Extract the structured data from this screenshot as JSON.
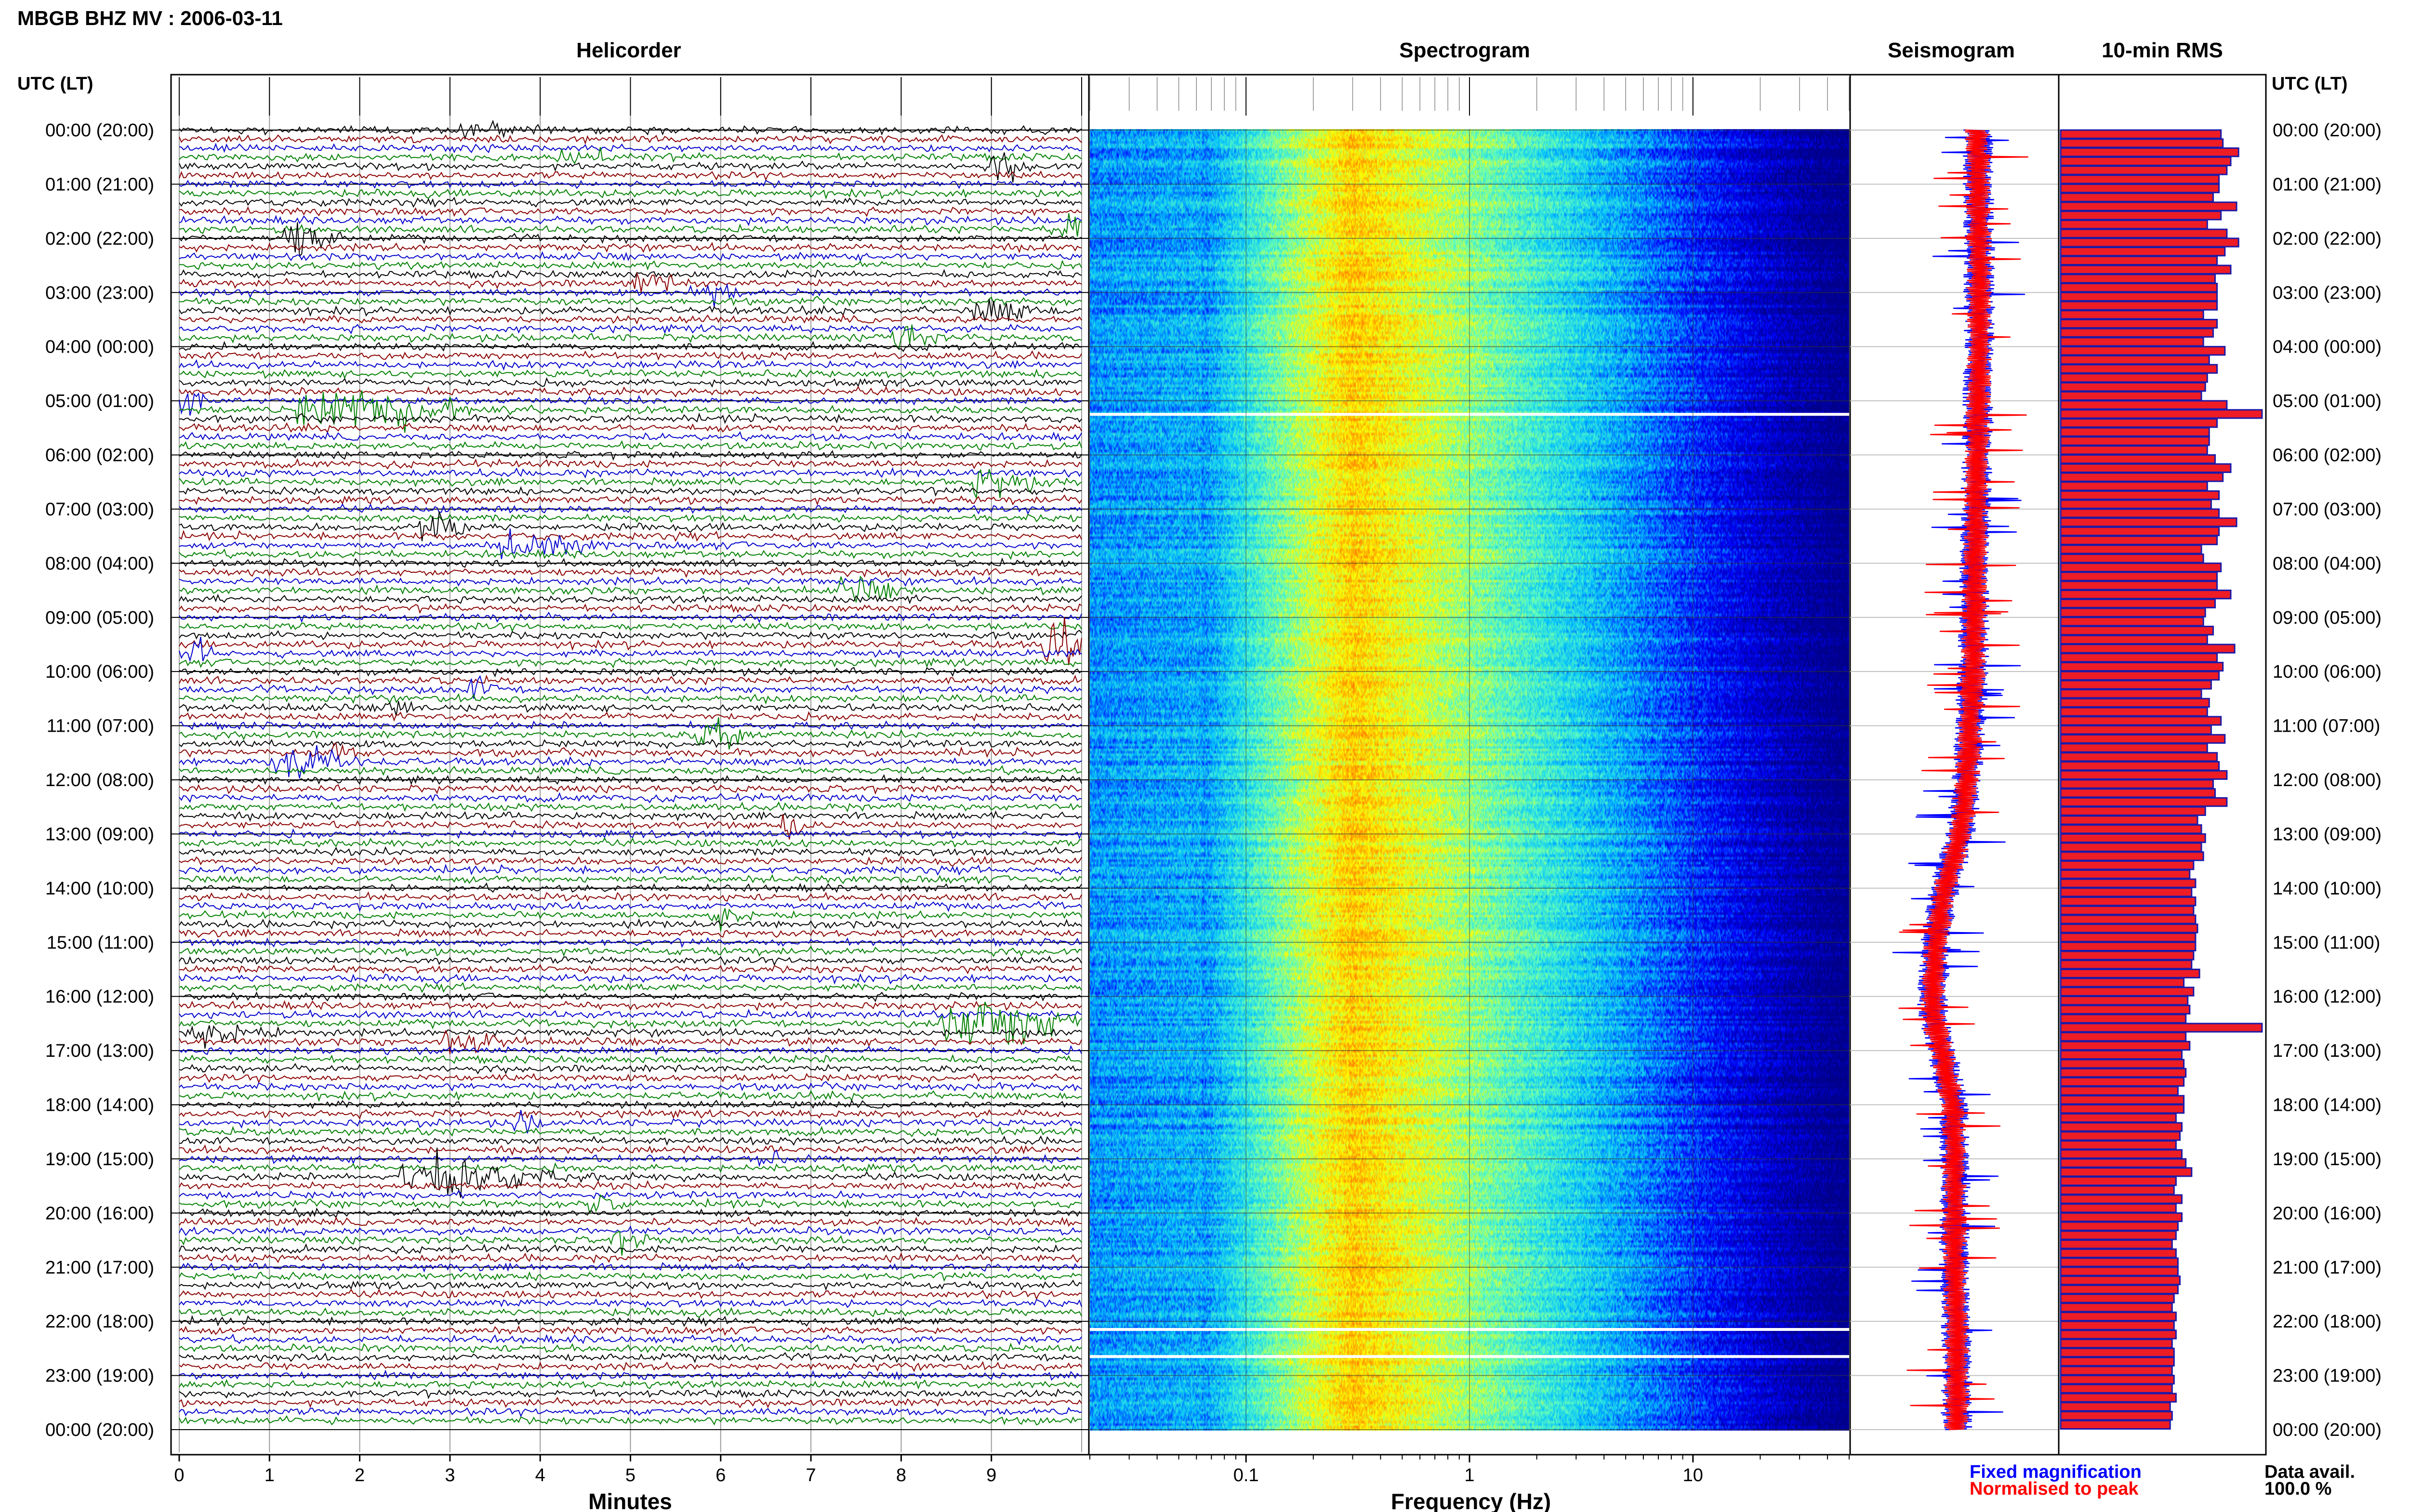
{
  "header": {
    "title": "MBGB BHZ MV : 2006-03-11",
    "utc_label_left": "UTC (LT)",
    "utc_label_right": "UTC (LT)"
  },
  "panels": {
    "helicorder": "Helicorder",
    "spectrogram": "Spectrogram",
    "seismogram": "Seismogram",
    "rms": "10-min RMS"
  },
  "time_labels": [
    "00:00 (20:00)",
    "01:00 (21:00)",
    "02:00 (22:00)",
    "03:00 (23:00)",
    "04:00 (00:00)",
    "05:00 (01:00)",
    "06:00 (02:00)",
    "07:00 (03:00)",
    "08:00 (04:00)",
    "09:00 (05:00)",
    "10:00 (06:00)",
    "11:00 (07:00)",
    "12:00 (08:00)",
    "13:00 (09:00)",
    "14:00 (10:00)",
    "15:00 (11:00)",
    "16:00 (12:00)",
    "17:00 (13:00)",
    "18:00 (14:00)",
    "19:00 (15:00)",
    "20:00 (16:00)",
    "21:00 (17:00)",
    "22:00 (18:00)",
    "23:00 (19:00)",
    "00:00 (20:00)"
  ],
  "x_axes": {
    "minutes_ticks": [
      "0",
      "1",
      "2",
      "3",
      "4",
      "5",
      "6",
      "7",
      "8",
      "9"
    ],
    "minutes_label": "Minutes",
    "frequency_ticks": [
      "0.1",
      "1",
      "10"
    ],
    "frequency_label": "Frequency (Hz)"
  },
  "legend": {
    "fixed": "Fixed magnification",
    "normalised": "Normalised to peak",
    "fixed_color": "#0000ff",
    "normalised_color": "#ff0000"
  },
  "availability": {
    "label": "Data avail.",
    "value": "100.0 %"
  },
  "colors": {
    "trace_cycle": [
      "#000000",
      "#8b0000",
      "#0000cd",
      "#008000"
    ],
    "rms_fill": "#ee1c25",
    "rms_edge": "#1a1aa8"
  },
  "chart_data": [
    {
      "type": "line",
      "title": "Helicorder",
      "xlabel": "Minutes",
      "xlim": [
        0,
        10
      ],
      "rows": 144,
      "row_minutes": 10,
      "events": [
        {
          "row": 0,
          "minute": 3.3,
          "amp": 0.5,
          "dur": 0.8
        },
        {
          "row": 3,
          "minute": 4.4,
          "amp": 0.5,
          "dur": 0.6
        },
        {
          "row": 4,
          "minute": 9.1,
          "amp": 1.0,
          "dur": 0.4
        },
        {
          "row": 12,
          "minute": 1.3,
          "amp": 1.4,
          "dur": 0.6
        },
        {
          "row": 11,
          "minute": 9.8,
          "amp": 1.3,
          "dur": 0.5
        },
        {
          "row": 18,
          "minute": 5.8,
          "amp": 1.0,
          "dur": 0.5
        },
        {
          "row": 17,
          "minute": 5.2,
          "amp": 0.6,
          "dur": 0.6
        },
        {
          "row": 20,
          "minute": 9.0,
          "amp": 0.8,
          "dur": 0.7
        },
        {
          "row": 23,
          "minute": 8.0,
          "amp": 1.1,
          "dur": 0.5
        },
        {
          "row": 31,
          "minute": 1.9,
          "amp": 1.5,
          "dur": 2.0
        },
        {
          "row": 30,
          "minute": 0.1,
          "amp": 1.2,
          "dur": 0.3
        },
        {
          "row": 39,
          "minute": 9.0,
          "amp": 1.0,
          "dur": 0.8
        },
        {
          "row": 44,
          "minute": 2.8,
          "amp": 1.0,
          "dur": 0.6
        },
        {
          "row": 46,
          "minute": 3.8,
          "amp": 1.0,
          "dur": 1.0
        },
        {
          "row": 51,
          "minute": 7.5,
          "amp": 0.8,
          "dur": 0.7
        },
        {
          "row": 57,
          "minute": 9.7,
          "amp": 1.6,
          "dur": 0.5
        },
        {
          "row": 58,
          "minute": 0.2,
          "amp": 0.8,
          "dur": 0.3
        },
        {
          "row": 62,
          "minute": 3.3,
          "amp": 0.8,
          "dur": 0.3
        },
        {
          "row": 64,
          "minute": 2.4,
          "amp": 0.6,
          "dur": 0.4
        },
        {
          "row": 67,
          "minute": 5.9,
          "amp": 1.3,
          "dur": 0.6
        },
        {
          "row": 70,
          "minute": 1.3,
          "amp": 1.2,
          "dur": 0.9
        },
        {
          "row": 69,
          "minute": 1.8,
          "amp": 0.8,
          "dur": 0.3
        },
        {
          "row": 77,
          "minute": 6.8,
          "amp": 0.7,
          "dur": 0.4
        },
        {
          "row": 87,
          "minute": 6.0,
          "amp": 0.8,
          "dur": 0.4
        },
        {
          "row": 99,
          "minute": 8.9,
          "amp": 2.0,
          "dur": 1.6
        },
        {
          "row": 100,
          "minute": 0.3,
          "amp": 0.8,
          "dur": 1.0
        },
        {
          "row": 101,
          "minute": 3.1,
          "amp": 0.8,
          "dur": 0.8
        },
        {
          "row": 116,
          "minute": 2.9,
          "amp": 1.7,
          "dur": 1.5
        },
        {
          "row": 119,
          "minute": 4.6,
          "amp": 0.8,
          "dur": 0.3
        },
        {
          "row": 123,
          "minute": 4.9,
          "amp": 0.7,
          "dur": 0.4
        },
        {
          "row": 114,
          "minute": 6.5,
          "amp": 0.4,
          "dur": 0.4
        },
        {
          "row": 110,
          "minute": 3.8,
          "amp": 0.7,
          "dur": 0.3
        }
      ]
    },
    {
      "type": "heatmap",
      "title": "Spectrogram",
      "xlabel": "Frequency (Hz)",
      "x_scale": "log",
      "xlim": [
        0.02,
        50
      ],
      "ylim_hours": [
        0,
        24
      ],
      "colormap": [
        "#00008b",
        "#0000ff",
        "#00bfff",
        "#5fffbf",
        "#ffff00",
        "#ff8000"
      ],
      "spectral_peak_hz": 0.3,
      "white_gaps_hours": [
        5.25,
        22.15,
        22.65
      ]
    },
    {
      "type": "line",
      "title": "Seismogram",
      "series": [
        {
          "name": "Fixed magnification",
          "color": "#0000ff"
        },
        {
          "name": "Normalised to peak",
          "color": "#ff0000"
        }
      ],
      "hours": [
        0,
        2,
        4,
        6,
        8,
        10,
        12,
        13,
        14,
        15,
        16,
        16.5,
        17,
        18,
        19,
        20,
        21,
        22,
        23,
        24
      ],
      "drift": [
        0.55,
        0.6,
        0.6,
        0.55,
        0.5,
        0.45,
        0.3,
        0.15,
        -0.25,
        -0.45,
        -0.55,
        -0.5,
        -0.3,
        -0.05,
        0.0,
        0.0,
        0.0,
        0.05,
        0.05,
        0.05
      ]
    },
    {
      "type": "bar",
      "title": "10-min RMS",
      "orientation": "horizontal",
      "values": [
        0.82,
        0.83,
        0.91,
        0.87,
        0.85,
        0.81,
        0.81,
        0.78,
        0.9,
        0.82,
        0.75,
        0.85,
        0.91,
        0.84,
        0.8,
        0.87,
        0.79,
        0.8,
        0.8,
        0.8,
        0.73,
        0.8,
        0.78,
        0.73,
        0.84,
        0.76,
        0.8,
        0.75,
        0.74,
        0.72,
        0.85,
        1.03,
        0.8,
        0.76,
        0.76,
        0.75,
        0.79,
        0.87,
        0.83,
        0.75,
        0.81,
        0.77,
        0.81,
        0.9,
        0.81,
        0.8,
        0.72,
        0.73,
        0.82,
        0.8,
        0.8,
        0.87,
        0.79,
        0.74,
        0.73,
        0.78,
        0.75,
        0.89,
        0.8,
        0.83,
        0.81,
        0.77,
        0.72,
        0.76,
        0.75,
        0.82,
        0.77,
        0.84,
        0.75,
        0.8,
        0.81,
        0.85,
        0.78,
        0.79,
        0.85,
        0.74,
        0.7,
        0.72,
        0.74,
        0.72,
        0.73,
        0.68,
        0.66,
        0.69,
        0.67,
        0.69,
        0.68,
        0.69,
        0.7,
        0.69,
        0.69,
        0.68,
        0.67,
        0.71,
        0.63,
        0.68,
        0.65,
        0.66,
        0.64,
        1.03,
        0.64,
        0.66,
        0.62,
        0.63,
        0.64,
        0.63,
        0.6,
        0.63,
        0.63,
        0.59,
        0.62,
        0.61,
        0.59,
        0.62,
        0.64,
        0.67,
        0.59,
        0.58,
        0.62,
        0.59,
        0.62,
        0.6,
        0.59,
        0.57,
        0.59,
        0.6,
        0.6,
        0.61,
        0.6,
        0.58,
        0.57,
        0.59,
        0.58,
        0.59,
        0.57,
        0.58,
        0.58,
        0.57,
        0.58,
        0.57,
        0.59,
        0.56,
        0.57,
        0.56
      ],
      "xlim": [
        0,
        1.05
      ]
    }
  ]
}
